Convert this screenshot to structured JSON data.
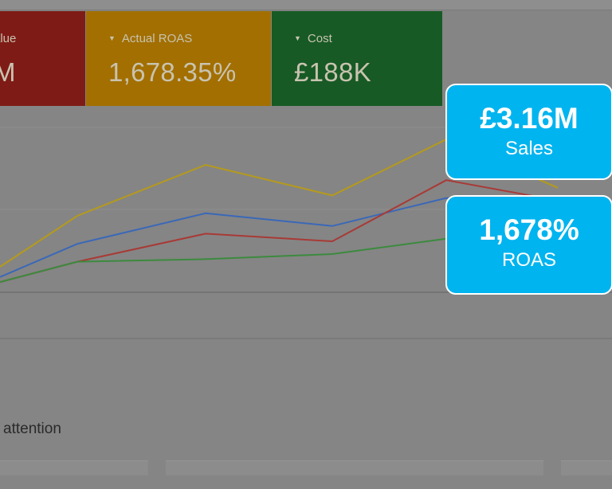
{
  "metrics": [
    {
      "label": "alue",
      "value": "M",
      "color": "#7f1b16"
    },
    {
      "label": "Actual ROAS",
      "value": "1,678.35%",
      "color": "#a26f00"
    },
    {
      "label": "Cost",
      "value": "£188K",
      "color": "#175a25"
    }
  ],
  "chart_data": {
    "type": "line",
    "series": [
      {
        "color": "#b59a1c",
        "values": [
          1,
          3,
          5,
          3.8,
          6,
          4.1
        ]
      },
      {
        "color": "#3a68b8",
        "values": [
          0.6,
          1.9,
          3.1,
          2.6,
          3.7,
          3.5
        ]
      },
      {
        "color": "#a83a36",
        "values": [
          0.4,
          1.2,
          2.3,
          2,
          4.4,
          3.6
        ]
      },
      {
        "color": "#3c8a3e",
        "values": [
          0.4,
          1.2,
          1.3,
          1.5,
          2.1
        ]
      }
    ]
  },
  "section": {
    "title_partial": "attention"
  },
  "callouts": [
    {
      "value": "£3.16M",
      "label": "Sales",
      "color": "#00b4ef"
    },
    {
      "value": "1,678%",
      "label": "ROAS",
      "color": "#00b4ef"
    }
  ]
}
